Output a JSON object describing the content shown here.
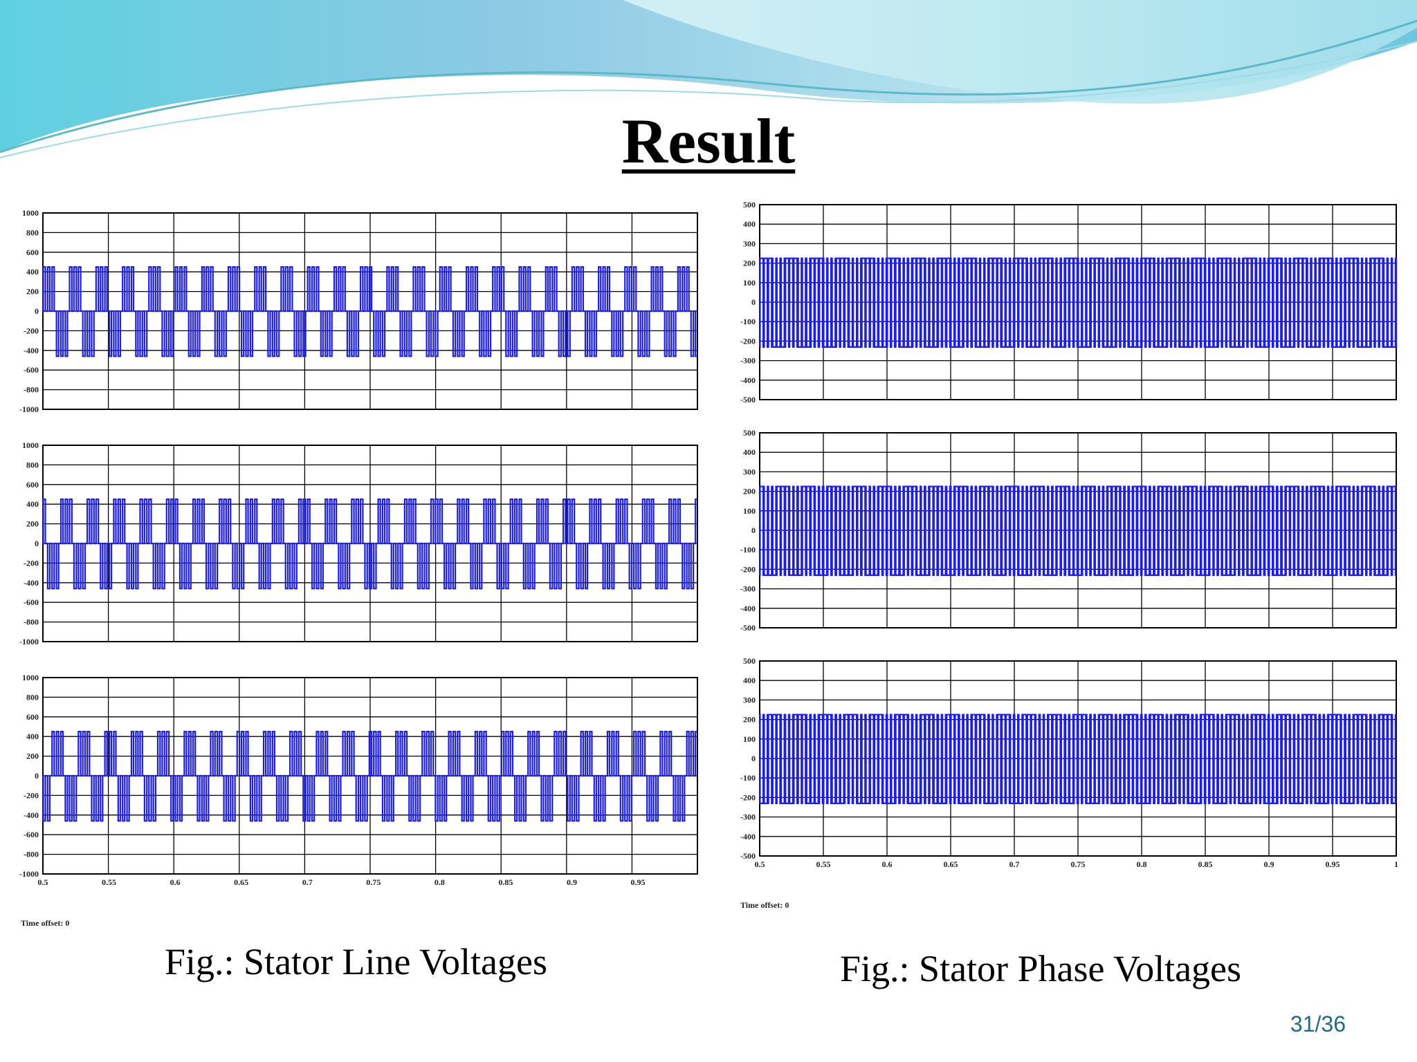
{
  "slide": {
    "title": "Result",
    "page_number": "31/36",
    "left_caption": "Fig.: Stator Line Voltages",
    "right_caption": "Fig.: Stator Phase Voltages",
    "left_time_offset": "Time offset:  0",
    "right_time_offset": "Time offset:  0",
    "theme_colors": {
      "wave_light": "#bfe9ef",
      "wave_mid": "#7fcde0",
      "wave_dark": "#3fb3cf",
      "trace": "#1a1aff"
    }
  },
  "chart_data": [
    {
      "type": "line",
      "group": "stator-line-voltages",
      "title": "",
      "xlabel": "",
      "ylabel": "",
      "xlim": [
        0.5,
        0.995
      ],
      "ylim": [
        -1000,
        1000
      ],
      "yticks": [
        "1000",
        "800",
        "600",
        "400",
        "200",
        "0",
        "-200",
        "-400",
        "-600",
        "-800",
        "-1000"
      ],
      "xticks": [],
      "grid": true,
      "series": [
        {
          "waveform": "three-level square wave",
          "high_level": 450,
          "low_level": -460,
          "fundamental_frequency_hz": 50,
          "pulses_per_cycle": 3,
          "phase_deg": 0,
          "x_start": 0.5,
          "x_end": 0.995
        }
      ]
    },
    {
      "type": "line",
      "group": "stator-line-voltages",
      "title": "",
      "xlabel": "",
      "ylabel": "",
      "xlim": [
        0.5,
        0.995
      ],
      "ylim": [
        -1000,
        1000
      ],
      "yticks": [
        "1000",
        "800",
        "600",
        "400",
        "200",
        "0",
        "-200",
        "-400",
        "-600",
        "-800",
        "-1000"
      ],
      "xticks": [],
      "grid": true,
      "series": [
        {
          "waveform": "three-level square wave",
          "high_level": 450,
          "low_level": -460,
          "fundamental_frequency_hz": 50,
          "pulses_per_cycle": 3,
          "phase_deg": 120,
          "x_start": 0.5,
          "x_end": 0.995
        }
      ]
    },
    {
      "type": "line",
      "group": "stator-line-voltages",
      "title": "",
      "xlabel": "",
      "ylabel": "",
      "xlim": [
        0.5,
        0.995
      ],
      "ylim": [
        -1000,
        1000
      ],
      "yticks": [
        "1000",
        "800",
        "600",
        "400",
        "200",
        "0",
        "-200",
        "-400",
        "-600",
        "-800",
        "-1000"
      ],
      "xticks": [
        "0.5",
        "0.55",
        "0.6",
        "0.65",
        "0.7",
        "0.75",
        "0.8",
        "0.85",
        "0.9",
        "0.95"
      ],
      "grid": true,
      "series": [
        {
          "waveform": "three-level square wave",
          "high_level": 450,
          "low_level": -460,
          "fundamental_frequency_hz": 50,
          "pulses_per_cycle": 3,
          "phase_deg": 240,
          "x_start": 0.5,
          "x_end": 0.995
        }
      ]
    },
    {
      "type": "line",
      "group": "stator-phase-voltages",
      "title": "",
      "xlabel": "",
      "ylabel": "",
      "xlim": [
        0.5,
        1.0
      ],
      "ylim": [
        -500,
        500
      ],
      "yticks": [
        "500",
        "400",
        "300",
        "200",
        "100",
        "0",
        "-100",
        "-200",
        "-300",
        "-400",
        "-500"
      ],
      "xticks": [],
      "grid": true,
      "series": [
        {
          "waveform": "two-level square wave",
          "high_level": 225,
          "low_level": -230,
          "fundamental_frequency_hz": 50,
          "pulses_per_cycle": 3,
          "phase_deg": 0,
          "x_start": 0.5,
          "x_end": 1.0
        }
      ]
    },
    {
      "type": "line",
      "group": "stator-phase-voltages",
      "title": "",
      "xlabel": "",
      "ylabel": "",
      "xlim": [
        0.5,
        1.0
      ],
      "ylim": [
        -500,
        500
      ],
      "yticks": [
        "500",
        "400",
        "300",
        "200",
        "100",
        "0",
        "-100",
        "-200",
        "-300",
        "-400",
        "-500"
      ],
      "xticks": [],
      "grid": true,
      "series": [
        {
          "waveform": "two-level square wave",
          "high_level": 225,
          "low_level": -230,
          "fundamental_frequency_hz": 50,
          "pulses_per_cycle": 3,
          "phase_deg": 120,
          "x_start": 0.5,
          "x_end": 1.0
        }
      ]
    },
    {
      "type": "line",
      "group": "stator-phase-voltages",
      "title": "",
      "xlabel": "",
      "ylabel": "",
      "xlim": [
        0.5,
        1.0
      ],
      "ylim": [
        -500,
        500
      ],
      "yticks": [
        "500",
        "400",
        "300",
        "200",
        "100",
        "0",
        "-100",
        "-200",
        "-300",
        "-400",
        "-500"
      ],
      "xticks": [
        "0.5",
        "0.55",
        "0.6",
        "0.65",
        "0.7",
        "0.75",
        "0.8",
        "0.85",
        "0.9",
        "0.95",
        "1"
      ],
      "grid": true,
      "series": [
        {
          "waveform": "two-level square wave",
          "high_level": 225,
          "low_level": -230,
          "fundamental_frequency_hz": 50,
          "pulses_per_cycle": 3,
          "phase_deg": 240,
          "x_start": 0.5,
          "x_end": 1.0
        }
      ]
    }
  ]
}
